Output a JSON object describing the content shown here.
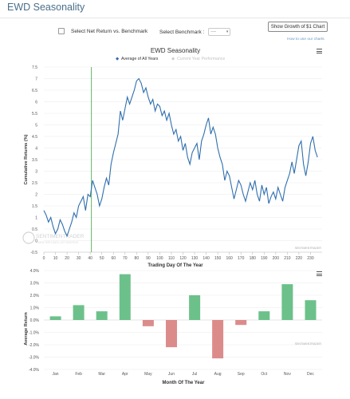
{
  "page": {
    "title": "EWD Seasonality",
    "checkbox_label": "Select Net Return vs. Benchmark",
    "benchmark_label": "Select Benchmark :",
    "benchmark_value": "----",
    "growth_button": "Show Growth of $1 Chart",
    "howto_link": "How to use our charts",
    "watermark_main": "SENTIMENTRADER",
    "watermark_sub": "TRADE WITH DATA, NOT EMOTION",
    "credit": "SENTIMENTRADER"
  },
  "chart_data": [
    {
      "type": "line",
      "title": "EWD Seasonality",
      "xlabel": "Trading Day Of The Year",
      "ylabel": "Cumulative Returns (%)",
      "xlim": [
        0,
        240
      ],
      "ylim": [
        -0.5,
        7.5
      ],
      "xticks": [
        0,
        10,
        20,
        30,
        40,
        50,
        60,
        70,
        80,
        90,
        100,
        110,
        120,
        130,
        140,
        150,
        160,
        170,
        180,
        190,
        200,
        210,
        220,
        230
      ],
      "yticks": [
        7.5,
        7,
        6.5,
        6,
        5.5,
        5,
        4.5,
        4,
        3.5,
        3,
        2.5,
        2,
        1.5,
        1,
        0.5,
        0,
        -0.5
      ],
      "ytick_labels": [
        "7.5",
        "7",
        "6.5",
        "6",
        "5.5",
        "5",
        "4.5",
        "4",
        "3.5",
        "3",
        "2.5",
        "2",
        "1.5",
        "1",
        "0.5",
        "0",
        "-0.5"
      ],
      "legend": [
        "Average of All Years",
        "Current Year Performance"
      ],
      "legend_position": "top-center",
      "marker_line_x": 41,
      "series": [
        {
          "name": "Average of All Years",
          "color": "#2f6fad",
          "x": [
            0,
            2,
            4,
            6,
            8,
            10,
            12,
            14,
            16,
            18,
            20,
            22,
            24,
            26,
            28,
            30,
            32,
            34,
            36,
            38,
            40,
            42,
            44,
            46,
            48,
            50,
            52,
            54,
            56,
            58,
            60,
            62,
            64,
            66,
            68,
            70,
            72,
            74,
            76,
            78,
            80,
            82,
            84,
            86,
            88,
            90,
            92,
            94,
            96,
            98,
            100,
            102,
            104,
            106,
            108,
            110,
            112,
            114,
            116,
            118,
            120,
            122,
            124,
            126,
            128,
            130,
            132,
            134,
            136,
            138,
            140,
            142,
            144,
            146,
            148,
            150,
            152,
            154,
            156,
            158,
            160,
            162,
            164,
            166,
            168,
            170,
            172,
            174,
            176,
            178,
            180,
            182,
            184,
            186,
            188,
            190,
            192,
            194,
            196,
            198,
            200,
            202,
            204,
            206,
            208,
            210,
            212,
            214,
            216,
            218,
            220,
            222,
            224,
            226,
            228,
            230,
            232,
            234,
            236
          ],
          "values": [
            1.3,
            1.1,
            0.8,
            1.0,
            0.6,
            0.3,
            0.5,
            0.9,
            0.7,
            0.4,
            0.2,
            0.5,
            0.8,
            1.2,
            1.0,
            1.5,
            1.7,
            1.9,
            1.3,
            2.0,
            1.9,
            2.6,
            2.3,
            2.0,
            1.5,
            1.8,
            2.3,
            2.7,
            2.4,
            3.3,
            3.8,
            4.2,
            4.6,
            5.6,
            5.2,
            5.7,
            6.2,
            5.9,
            6.2,
            6.5,
            6.9,
            7.0,
            6.8,
            6.4,
            6.6,
            6.2,
            5.9,
            6.1,
            5.6,
            5.9,
            5.8,
            5.4,
            5.6,
            5.2,
            5.5,
            5.0,
            4.6,
            4.8,
            4.3,
            4.5,
            3.9,
            4.2,
            3.6,
            3.3,
            3.8,
            4.0,
            4.2,
            3.5,
            4.3,
            4.6,
            5.0,
            5.3,
            4.6,
            4.9,
            4.6,
            4.0,
            3.6,
            3.3,
            2.6,
            3.0,
            2.8,
            2.3,
            1.8,
            2.2,
            2.6,
            2.4,
            2.0,
            1.7,
            2.1,
            2.5,
            2.2,
            2.6,
            2.0,
            1.7,
            2.4,
            2.0,
            2.3,
            1.6,
            1.9,
            2.1,
            1.8,
            2.3,
            2.0,
            1.7,
            2.3,
            2.6,
            2.9,
            3.4,
            2.9,
            3.5,
            4.1,
            4.3,
            3.3,
            2.8,
            3.4,
            4.2,
            4.5,
            3.9,
            3.6
          ]
        }
      ]
    },
    {
      "type": "bar",
      "xlabel": "Month Of The Year",
      "ylabel": "Average Return",
      "ylim": [
        -4,
        4
      ],
      "yticks": [
        4,
        3,
        2,
        1,
        0,
        -1,
        -2,
        -3,
        -4
      ],
      "ytick_labels": [
        "4.0%",
        "3.0%",
        "2.0%",
        "1.0%",
        "0.0%",
        "-1.0%",
        "-2.0%",
        "-3.0%",
        "-4.0%"
      ],
      "categories": [
        "Jan",
        "Feb",
        "Mar",
        "Apr",
        "May",
        "Jun",
        "Jul",
        "Aug",
        "Sep",
        "Oct",
        "Nov",
        "Dec"
      ],
      "values": [
        0.3,
        1.2,
        0.7,
        3.7,
        -0.5,
        -2.2,
        2.0,
        -3.1,
        -0.4,
        0.7,
        2.9,
        1.6
      ],
      "positive_color": "#6cc18a",
      "negative_color": "#dc8b8b"
    }
  ]
}
